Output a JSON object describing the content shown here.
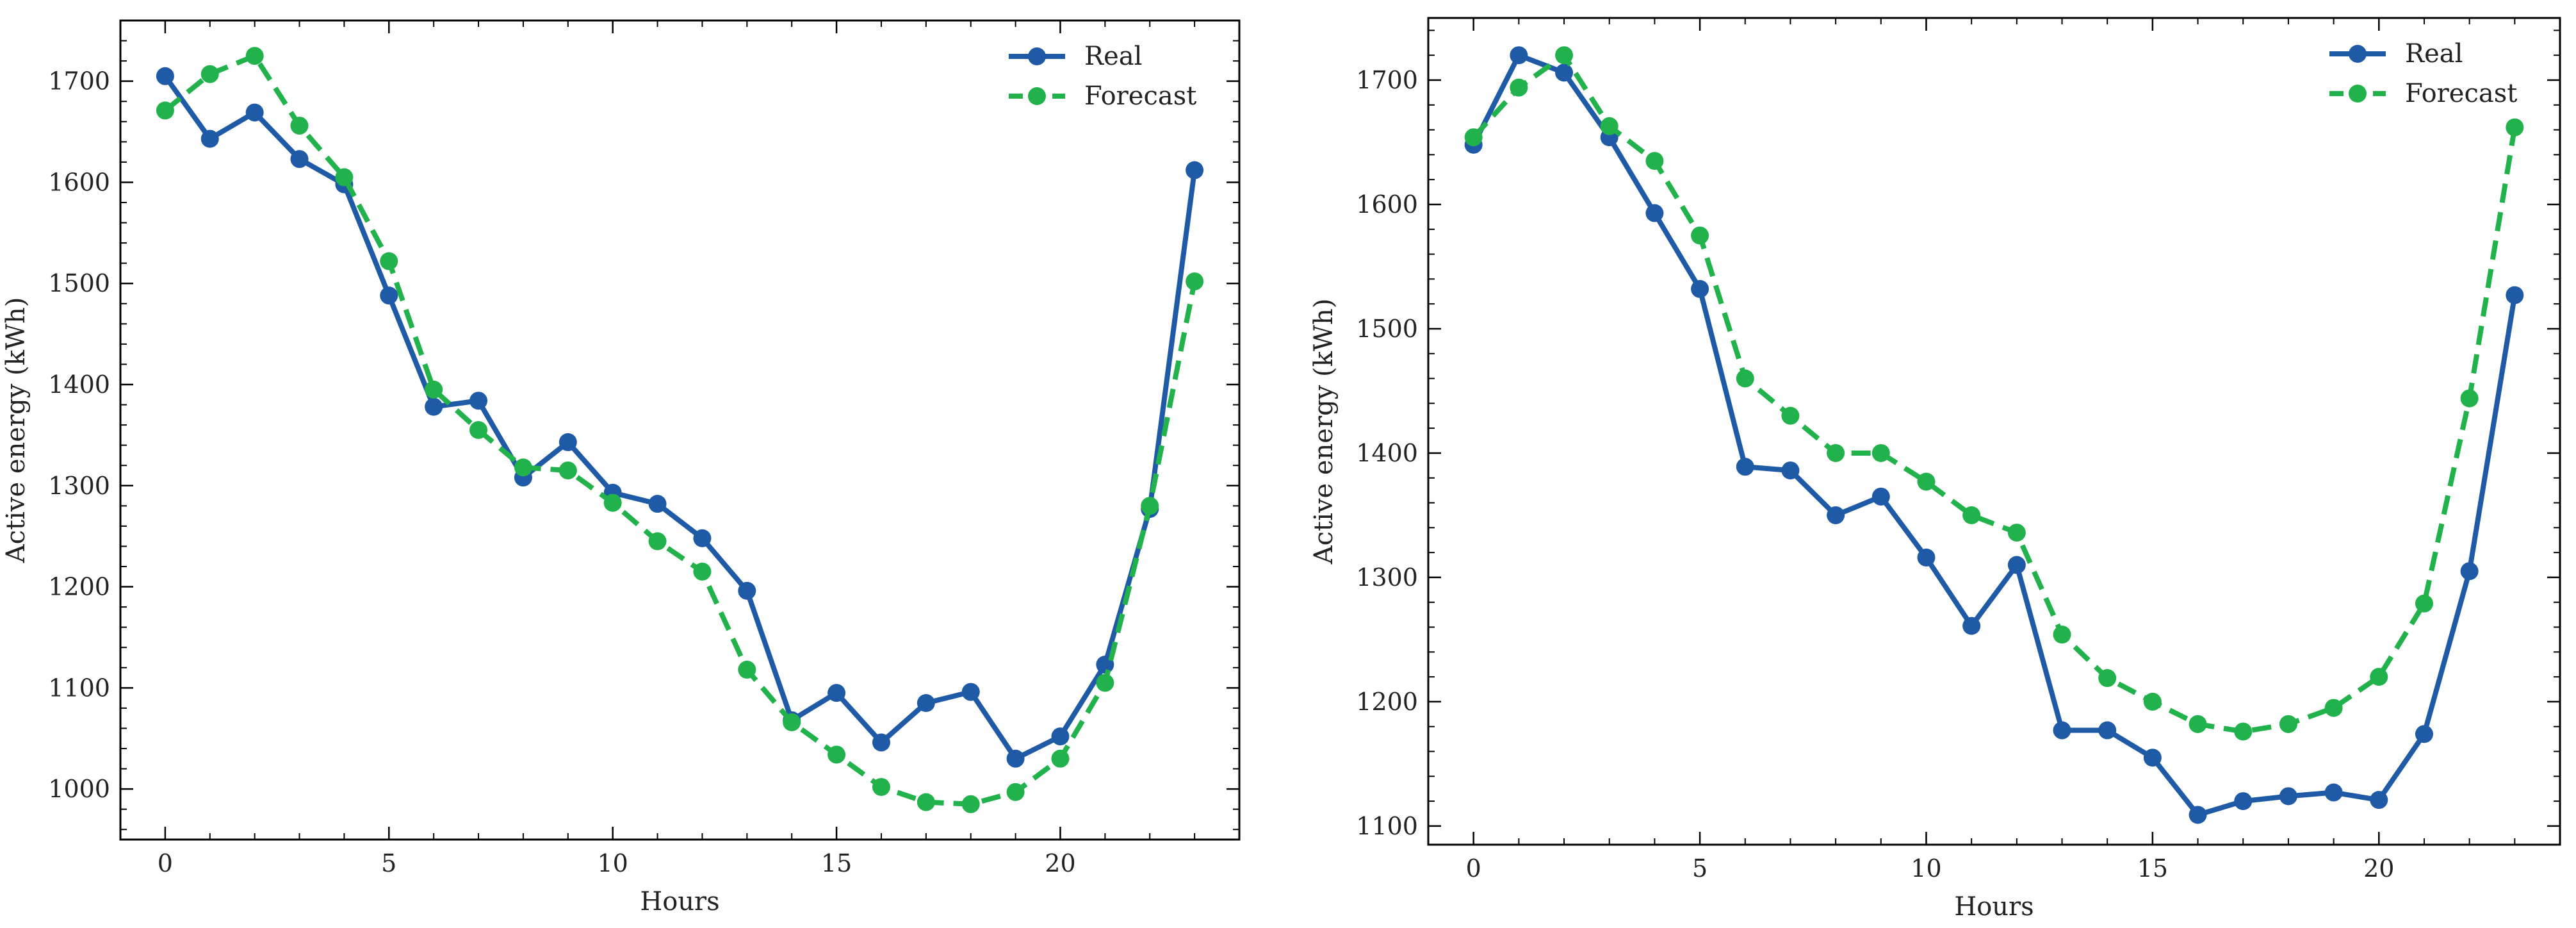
{
  "chart_data": [
    {
      "type": "line",
      "title": "",
      "xlabel": "Hours",
      "ylabel": "Active energy (kWh)",
      "xlim": [
        -1,
        24
      ],
      "ylim": [
        950,
        1760
      ],
      "xticks": [
        0,
        5,
        10,
        15,
        20
      ],
      "yticks": [
        1000,
        1100,
        1200,
        1300,
        1400,
        1500,
        1600,
        1700
      ],
      "legend_position": "top-right",
      "x": [
        0,
        1,
        2,
        3,
        4,
        5,
        6,
        7,
        8,
        9,
        10,
        11,
        12,
        13,
        14,
        15,
        16,
        17,
        18,
        19,
        20,
        21,
        22,
        23
      ],
      "series": [
        {
          "name": "Real",
          "color": "#1f5aa6",
          "style": "solid",
          "values": [
            1705,
            1643,
            1669,
            1623,
            1598,
            1488,
            1378,
            1384,
            1308,
            1343,
            1293,
            1282,
            1248,
            1196,
            1068,
            1095,
            1046,
            1085,
            1096,
            1030,
            1052,
            1123,
            1277,
            1612
          ]
        },
        {
          "name": "Forecast",
          "color": "#22b24c",
          "style": "dashed",
          "values": [
            1671,
            1707,
            1725,
            1656,
            1605,
            1522,
            1395,
            1355,
            1318,
            1315,
            1283,
            1245,
            1215,
            1118,
            1066,
            1034,
            1002,
            987,
            985,
            997,
            1030,
            1105,
            1280,
            1502
          ]
        }
      ]
    },
    {
      "type": "line",
      "title": "",
      "xlabel": "Hours",
      "ylabel": "Active energy (kWh)",
      "xlim": [
        -1,
        24
      ],
      "ylim": [
        1085,
        1750
      ],
      "xticks": [
        0,
        5,
        10,
        15,
        20
      ],
      "yticks": [
        1100,
        1200,
        1300,
        1400,
        1500,
        1600,
        1700
      ],
      "legend_position": "top-right",
      "x": [
        0,
        1,
        2,
        3,
        4,
        5,
        6,
        7,
        8,
        9,
        10,
        11,
        12,
        13,
        14,
        15,
        16,
        17,
        18,
        19,
        20,
        21,
        22,
        23
      ],
      "series": [
        {
          "name": "Real",
          "color": "#1f5aa6",
          "style": "solid",
          "values": [
            1648,
            1720,
            1706,
            1654,
            1593,
            1532,
            1389,
            1386,
            1350,
            1365,
            1316,
            1261,
            1310,
            1177,
            1177,
            1155,
            1109,
            1120,
            1124,
            1127,
            1121,
            1174,
            1305,
            1527
          ]
        },
        {
          "name": "Forecast",
          "color": "#22b24c",
          "style": "dashed",
          "values": [
            1654,
            1694,
            1720,
            1663,
            1635,
            1575,
            1460,
            1430,
            1400,
            1400,
            1377,
            1350,
            1336,
            1254,
            1219,
            1200,
            1182,
            1176,
            1182,
            1195,
            1220,
            1279,
            1444,
            1662
          ]
        }
      ]
    }
  ]
}
